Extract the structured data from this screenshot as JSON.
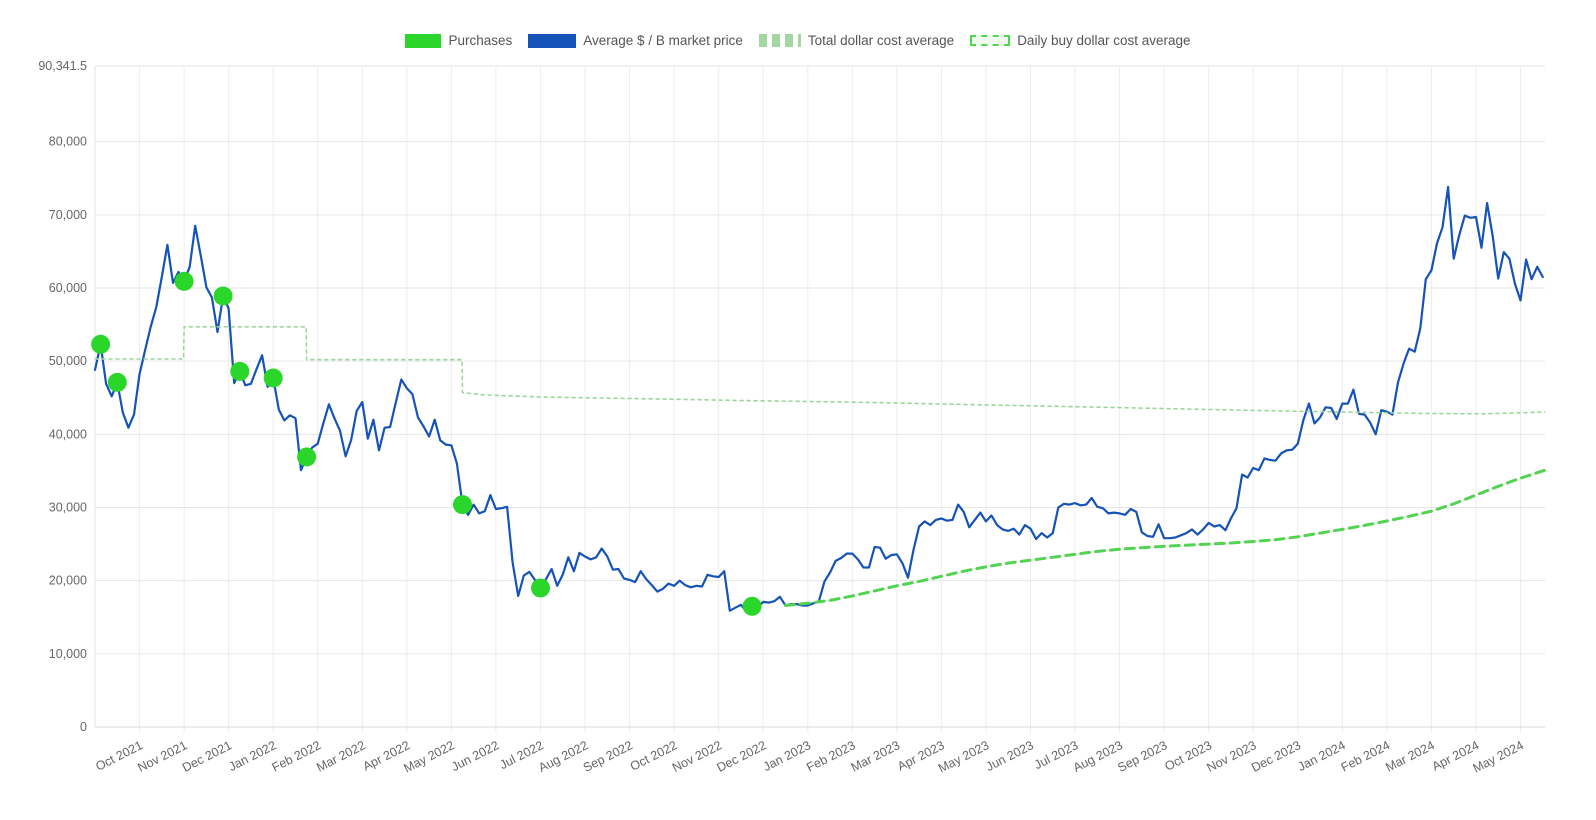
{
  "legend": {
    "items": [
      {
        "label": "Purchases",
        "type": "solid",
        "color": "#2bd62b"
      },
      {
        "label": "Average $ / B market price",
        "type": "solid",
        "color": "#1553b8"
      },
      {
        "label": "Total dollar cost average",
        "type": "dash-soft",
        "color": "#a3d6a3"
      },
      {
        "label": "Daily buy dollar cost average",
        "type": "dash-outline",
        "color": "#4fd64f",
        "fill": "#eefaee"
      }
    ]
  },
  "colors": {
    "grid_h": "#e6e6e6",
    "grid_v": "#ededed",
    "axis_border": "#d9d9d9",
    "axis_text": "#666666",
    "background": "#ffffff"
  },
  "chart_data": {
    "type": "line",
    "title": "",
    "xlabel": "",
    "ylabel": "",
    "legend_position": "top",
    "grid": true,
    "x_unit": "months (0 = Oct 2021)",
    "x_range": [
      -1.0,
      31.55
    ],
    "y_range": [
      0,
      90341.5
    ],
    "y_ticks": [
      {
        "label": "90,341.5",
        "value": 90341.5
      },
      {
        "label": "80,000",
        "value": 80000
      },
      {
        "label": "70,000",
        "value": 70000
      },
      {
        "label": "60,000",
        "value": 60000
      },
      {
        "label": "50,000",
        "value": 50000
      },
      {
        "label": "40,000",
        "value": 40000
      },
      {
        "label": "30,000",
        "value": 30000
      },
      {
        "label": "20,000",
        "value": 20000
      },
      {
        "label": "10,000",
        "value": 10000
      },
      {
        "label": "0",
        "value": 0
      }
    ],
    "x_ticks": [
      {
        "label": "Oct 2021",
        "value": 0
      },
      {
        "label": "Nov 2021",
        "value": 1
      },
      {
        "label": "Dec 2021",
        "value": 2
      },
      {
        "label": "Jan 2022",
        "value": 3
      },
      {
        "label": "Feb 2022",
        "value": 4
      },
      {
        "label": "Mar 2022",
        "value": 5
      },
      {
        "label": "Apr 2022",
        "value": 6
      },
      {
        "label": "May 2022",
        "value": 7
      },
      {
        "label": "Jun 2022",
        "value": 8
      },
      {
        "label": "Jul 2022",
        "value": 9
      },
      {
        "label": "Aug 2022",
        "value": 10
      },
      {
        "label": "Sep 2022",
        "value": 11
      },
      {
        "label": "Oct 2022",
        "value": 12
      },
      {
        "label": "Nov 2022",
        "value": 13
      },
      {
        "label": "Dec 2022",
        "value": 14
      },
      {
        "label": "Jan 2023",
        "value": 15
      },
      {
        "label": "Feb 2023",
        "value": 16
      },
      {
        "label": "Mar 2023",
        "value": 17
      },
      {
        "label": "Apr 2023",
        "value": 18
      },
      {
        "label": "May 2023",
        "value": 19
      },
      {
        "label": "Jun 2023",
        "value": 20
      },
      {
        "label": "Jul 2023",
        "value": 21
      },
      {
        "label": "Aug 2023",
        "value": 22
      },
      {
        "label": "Sep 2023",
        "value": 23
      },
      {
        "label": "Oct 2023",
        "value": 24
      },
      {
        "label": "Nov 2023",
        "value": 25
      },
      {
        "label": "Dec 2023",
        "value": 26
      },
      {
        "label": "Jan 2024",
        "value": 27
      },
      {
        "label": "Feb 2024",
        "value": 28
      },
      {
        "label": "Mar 2024",
        "value": 29
      },
      {
        "label": "Apr 2024",
        "value": 30
      },
      {
        "label": "May 2024",
        "value": 31
      }
    ],
    "series": [
      {
        "id": "market-price",
        "name": "Average $ / B market price",
        "color": "#1553b8",
        "width": 2.2,
        "x_start": -1.0,
        "x_step": 0.125,
        "values_k": [
          48.8,
          52.3,
          46.9,
          45.2,
          47.1,
          43.0,
          40.9,
          42.7,
          48.2,
          51.5,
          54.7,
          57.4,
          61.5,
          65.9,
          60.7,
          62.2,
          60.9,
          62.9,
          68.5,
          64.4,
          60.1,
          58.7,
          54.0,
          58.9,
          57.2,
          47.0,
          48.6,
          46.7,
          46.9,
          48.9,
          50.8,
          46.5,
          47.7,
          43.4,
          41.9,
          42.6,
          42.2,
          35.1,
          36.9,
          38.2,
          38.7,
          41.5,
          44.1,
          42.2,
          40.5,
          37.0,
          39.2,
          43.2,
          44.4,
          39.4,
          42.0,
          37.8,
          40.9,
          41.0,
          44.3,
          47.5,
          46.3,
          45.5,
          42.3,
          41.1,
          39.7,
          42.0,
          39.2,
          38.6,
          38.5,
          36.0,
          30.4,
          29.0,
          30.4,
          29.2,
          29.5,
          31.7,
          29.8,
          29.9,
          30.1,
          22.5,
          17.9,
          20.7,
          21.2,
          20.1,
          19.0,
          20.2,
          21.6,
          19.3,
          20.8,
          23.2,
          21.3,
          23.8,
          23.3,
          22.9,
          23.2,
          24.4,
          23.3,
          21.5,
          21.6,
          20.3,
          20.1,
          19.8,
          21.3,
          20.2,
          19.4,
          18.5,
          18.9,
          19.6,
          19.3,
          20.0,
          19.4,
          19.1,
          19.3,
          19.2,
          20.8,
          20.6,
          20.5,
          21.3,
          15.9,
          16.3,
          16.7,
          15.8,
          16.5,
          16.4,
          17.1,
          17.0,
          17.2,
          17.8,
          16.6,
          16.8,
          16.8,
          16.6,
          16.6,
          16.9,
          17.2,
          19.9,
          21.1,
          22.7,
          23.1,
          23.7,
          23.7,
          22.9,
          21.8,
          21.8,
          24.6,
          24.5,
          23.0,
          23.5,
          23.6,
          22.4,
          20.4,
          24.2,
          27.4,
          28.1,
          27.6,
          28.3,
          28.5,
          28.2,
          28.3,
          30.4,
          29.4,
          27.3,
          28.3,
          29.3,
          28.1,
          28.9,
          27.6,
          27.0,
          26.8,
          27.1,
          26.3,
          27.6,
          27.1,
          25.7,
          26.5,
          25.9,
          26.5,
          30.0,
          30.5,
          30.4,
          30.6,
          30.3,
          30.4,
          31.3,
          30.1,
          29.9,
          29.2,
          29.3,
          29.2,
          29.0,
          29.8,
          29.4,
          26.6,
          26.1,
          26.0,
          27.7,
          25.8,
          25.8,
          25.9,
          26.2,
          26.5,
          27.0,
          26.3,
          27.0,
          27.9,
          27.4,
          27.6,
          26.9,
          28.5,
          29.9,
          34.5,
          34.1,
          35.4,
          35.1,
          36.7,
          36.5,
          36.4,
          37.4,
          37.8,
          37.9,
          38.7,
          41.9,
          44.2,
          41.5,
          42.3,
          43.7,
          43.6,
          42.1,
          44.2,
          44.2,
          46.1,
          42.8,
          42.7,
          41.6,
          40.0,
          43.3,
          43.1,
          42.7,
          47.1,
          49.7,
          51.7,
          51.3,
          54.5,
          61.2,
          62.4,
          66.1,
          68.3,
          73.8,
          64.0,
          67.2,
          69.9,
          69.6,
          69.7,
          65.5,
          71.6,
          67.1,
          61.3,
          64.9,
          64.0,
          60.6,
          58.3,
          63.9,
          61.2,
          62.9,
          61.5
        ]
      },
      {
        "id": "total-dca",
        "name": "Total dollar cost average",
        "color": "#9dd69d",
        "width": 1.6,
        "dash": "3 4",
        "points_k": [
          [
            -1.0,
            50.3
          ],
          [
            0.99,
            50.3
          ],
          [
            1.0,
            54.7
          ],
          [
            3.74,
            54.7
          ],
          [
            3.75,
            50.2
          ],
          [
            7.24,
            50.2
          ],
          [
            7.25,
            45.7
          ],
          [
            7.7,
            45.4
          ],
          [
            9,
            45.1
          ],
          [
            11,
            44.9
          ],
          [
            13.75,
            44.6
          ],
          [
            16,
            44.4
          ],
          [
            18,
            44.15
          ],
          [
            20,
            43.9
          ],
          [
            22,
            43.65
          ],
          [
            24,
            43.4
          ],
          [
            26,
            43.15
          ],
          [
            27.5,
            43.0
          ],
          [
            29,
            42.85
          ],
          [
            30.2,
            42.8
          ],
          [
            31.55,
            43.05
          ]
        ]
      },
      {
        "id": "daily-dca",
        "name": "Daily buy dollar cost average",
        "color": "#52d452",
        "width": 3,
        "dash": "9 6",
        "points_k": [
          [
            14.5,
            16.6
          ],
          [
            15,
            16.9
          ],
          [
            15.5,
            17.3
          ],
          [
            16,
            17.9
          ],
          [
            16.5,
            18.6
          ],
          [
            17,
            19.3
          ],
          [
            17.5,
            19.9
          ],
          [
            18,
            20.6
          ],
          [
            18.5,
            21.3
          ],
          [
            19,
            21.9
          ],
          [
            19.5,
            22.4
          ],
          [
            20,
            22.8
          ],
          [
            20.5,
            23.2
          ],
          [
            21,
            23.6
          ],
          [
            21.5,
            24.0
          ],
          [
            22,
            24.3
          ],
          [
            22.5,
            24.5
          ],
          [
            23,
            24.7
          ],
          [
            23.5,
            24.85
          ],
          [
            24,
            25.0
          ],
          [
            24.5,
            25.15
          ],
          [
            25,
            25.35
          ],
          [
            25.5,
            25.6
          ],
          [
            26,
            26.0
          ],
          [
            26.5,
            26.5
          ],
          [
            27,
            27.0
          ],
          [
            27.5,
            27.55
          ],
          [
            28,
            28.15
          ],
          [
            28.5,
            28.8
          ],
          [
            29,
            29.5
          ],
          [
            29.5,
            30.5
          ],
          [
            30,
            31.7
          ],
          [
            30.5,
            32.9
          ],
          [
            31,
            34.0
          ],
          [
            31.55,
            35.1
          ]
        ]
      }
    ],
    "purchases": {
      "name": "Purchases",
      "color": "#2bd62b",
      "radius": 9.5,
      "points_k": [
        [
          -0.875,
          52.3
        ],
        [
          -0.5,
          47.1
        ],
        [
          1.0,
          60.9
        ],
        [
          1.875,
          58.9
        ],
        [
          2.25,
          48.6
        ],
        [
          3.0,
          47.7
        ],
        [
          3.75,
          36.9
        ],
        [
          7.25,
          30.4
        ],
        [
          9.0,
          19.0
        ],
        [
          13.75,
          16.5
        ]
      ]
    }
  }
}
